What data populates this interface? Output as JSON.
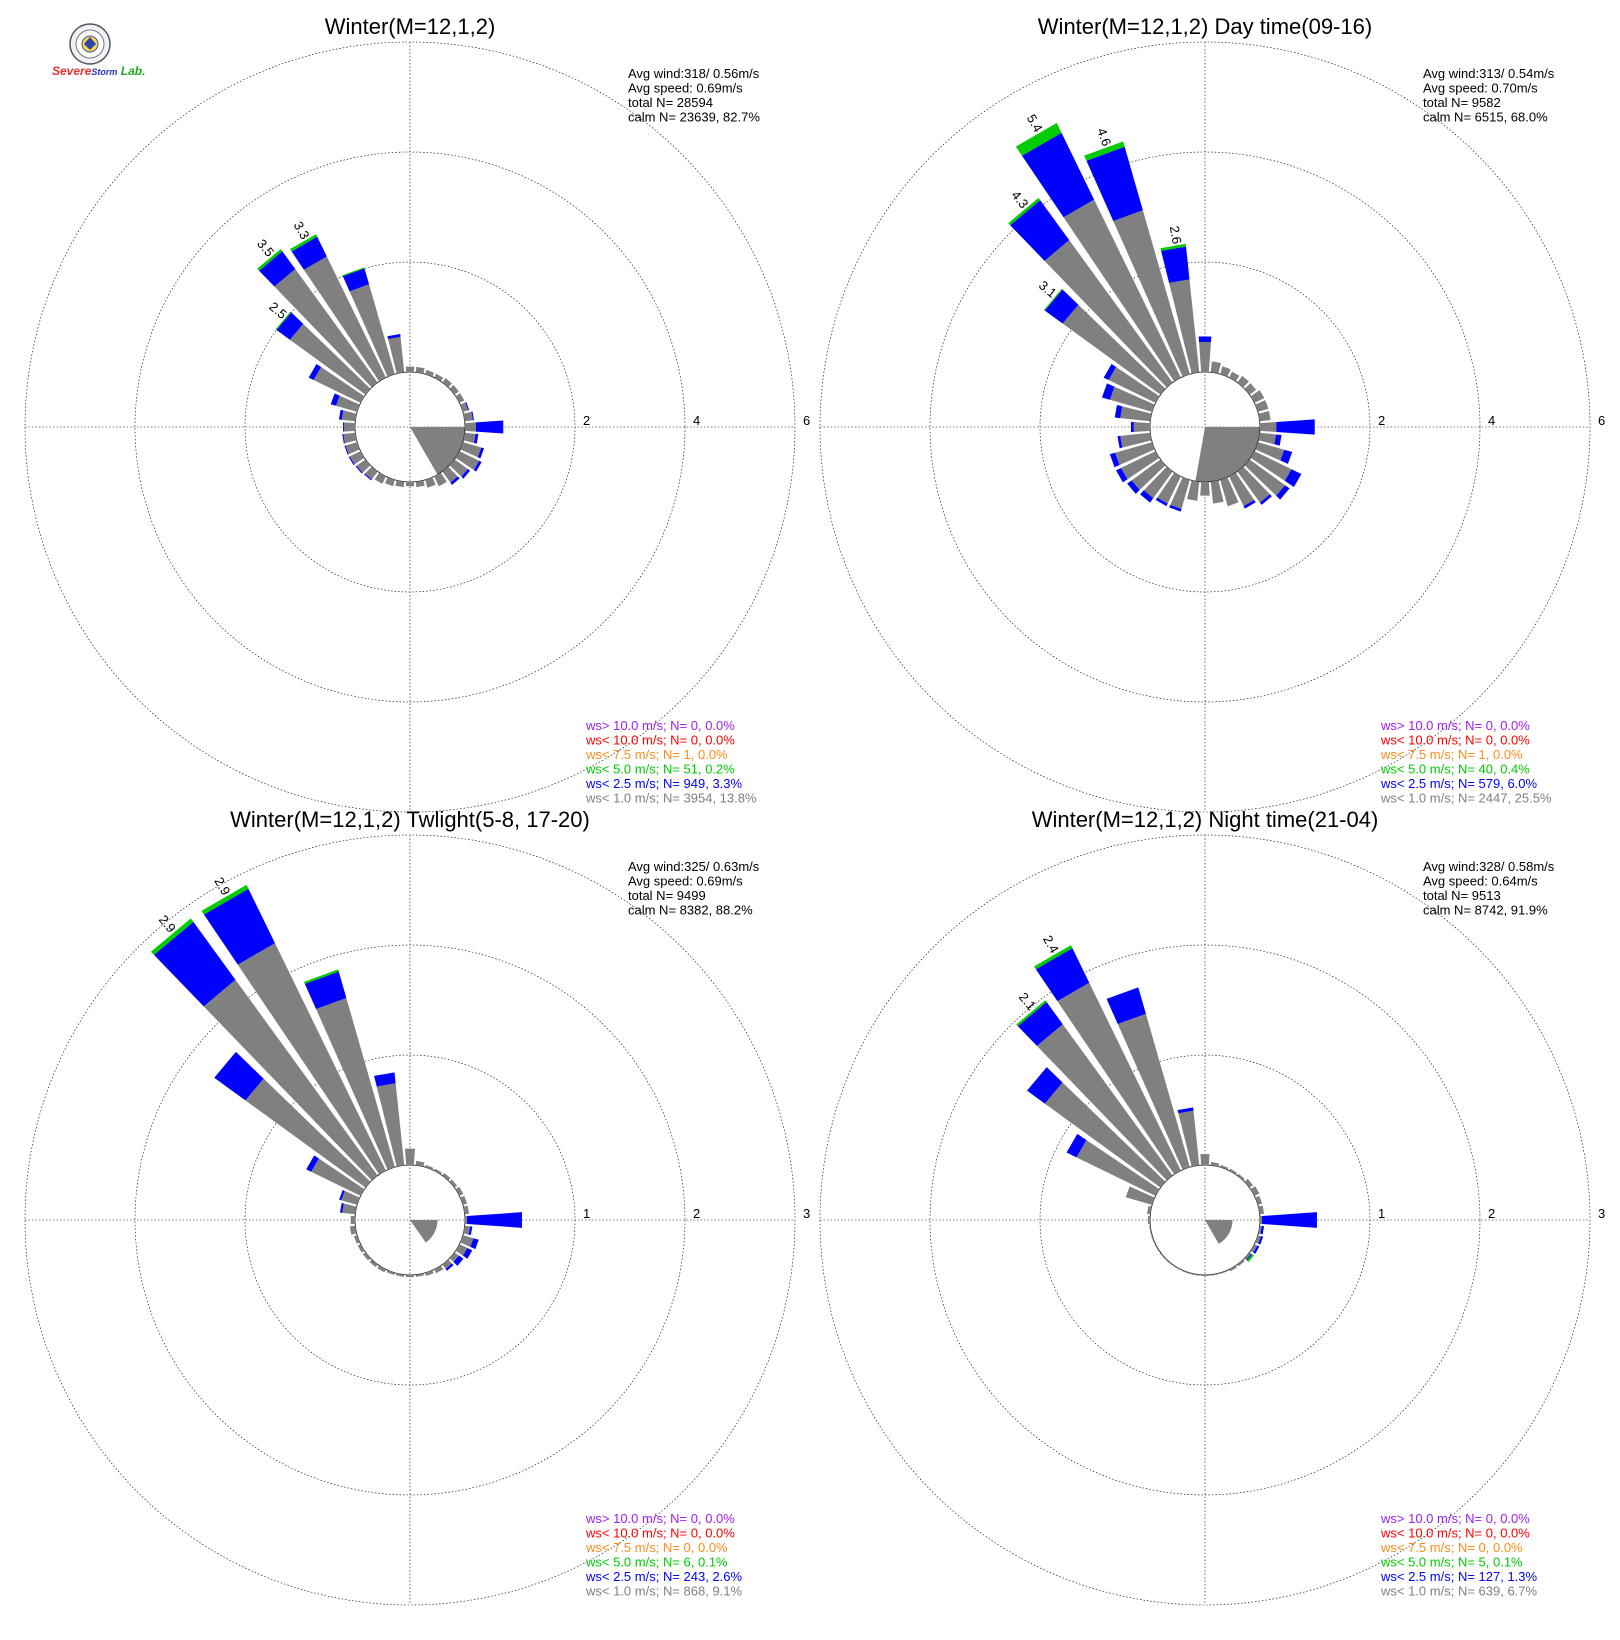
{
  "logo": {
    "text_severe": "Severe",
    "text_storm": "Storm",
    "text_lab": "Lab.",
    "colors": {
      "severe": "#e53030",
      "storm": "#2233cc",
      "lab": "#22aa22"
    }
  },
  "colors": {
    "ws_gt10": "#a020f0",
    "ws_lt10": "#ff0000",
    "ws_lt75": "#ff8c1a",
    "ws_lt50": "#00cc00",
    "ws_lt25": "#0000ff",
    "ws_lt10m": "#808080"
  },
  "chart_data": [
    {
      "type": "wind-rose",
      "title": "Winter(M=12,1,2)",
      "stats": [
        "Avg wind:318/ 0.56m/s",
        "Avg speed: 0.69m/s",
        "total N=      28594",
        "calm N=  23639,  82.7%"
      ],
      "radial_ticks": [
        "2",
        "4",
        "6"
      ],
      "rmax": 6,
      "legend": [
        {
          "text": "ws> 10.0 m/s; N=     0,  0.0%",
          "class": "ws_gt10"
        },
        {
          "text": "ws< 10.0 m/s; N=     0,  0.0%",
          "class": "ws_lt10"
        },
        {
          "text": "ws<  7.5 m/s; N=     1,  0.0%",
          "class": "ws_lt75"
        },
        {
          "text": "ws<  5.0 m/s; N=    51,  0.2%",
          "class": "ws_lt50"
        },
        {
          "text": "ws<  2.5 m/s; N=   949,  3.3%",
          "class": "ws_lt25"
        },
        {
          "text": "ws<  1.0 m/s; N=  3954, 13.8%",
          "class": "ws_lt10m"
        }
      ],
      "bars": [
        {
          "dir": 90,
          "g": 0.2,
          "b": 0.5,
          "gr": 0
        },
        {
          "dir": 100,
          "g": 0.2,
          "b": 0.05,
          "gr": 0
        },
        {
          "dir": 110,
          "g": 0.35,
          "b": 0.05,
          "gr": 0
        },
        {
          "dir": 120,
          "g": 0.4,
          "b": 0.05,
          "gr": 0
        },
        {
          "dir": 130,
          "g": 0.3,
          "b": 0.05,
          "gr": 0
        },
        {
          "dir": 140,
          "g": 0.25,
          "b": 0.05,
          "gr": 0
        },
        {
          "dir": 150,
          "g": 0.2,
          "b": 0,
          "gr": 0
        },
        {
          "dir": 160,
          "g": 0.15,
          "b": 0,
          "gr": 0
        },
        {
          "dir": 170,
          "g": 0.1,
          "b": 0,
          "gr": 0
        },
        {
          "dir": 180,
          "g": 0.08,
          "b": 0,
          "gr": 0
        },
        {
          "dir": 190,
          "g": 0.1,
          "b": 0,
          "gr": 0
        },
        {
          "dir": 200,
          "g": 0.12,
          "b": 0,
          "gr": 0
        },
        {
          "dir": 210,
          "g": 0.15,
          "b": 0,
          "gr": 0
        },
        {
          "dir": 220,
          "g": 0.18,
          "b": 0.02,
          "gr": 0
        },
        {
          "dir": 230,
          "g": 0.2,
          "b": 0.02,
          "gr": 0
        },
        {
          "dir": 240,
          "g": 0.22,
          "b": 0.02,
          "gr": 0
        },
        {
          "dir": 250,
          "g": 0.22,
          "b": 0.02,
          "gr": 0
        },
        {
          "dir": 260,
          "g": 0.22,
          "b": 0.02,
          "gr": 0
        },
        {
          "dir": 270,
          "g": 0.2,
          "b": 0.02,
          "gr": 0
        },
        {
          "dir": 280,
          "g": 0.25,
          "b": 0.05,
          "gr": 0
        },
        {
          "dir": 290,
          "g": 0.4,
          "b": 0.1,
          "gr": 0
        },
        {
          "dir": 300,
          "g": 0.95,
          "b": 0.1,
          "gr": 0
        },
        {
          "dir": 310,
          "g": 1.7,
          "b": 0.3,
          "gr": 0.02,
          "label": "2.5"
        },
        {
          "dir": 320,
          "g": 2.55,
          "b": 0.4,
          "gr": 0.05,
          "label": "3.5"
        },
        {
          "dir": 330,
          "g": 2.45,
          "b": 0.4,
          "gr": 0.05,
          "label": "3.3"
        },
        {
          "dir": 340,
          "g": 1.7,
          "b": 0.3,
          "gr": 0.02
        },
        {
          "dir": 350,
          "g": 0.65,
          "b": 0.05,
          "gr": 0
        },
        {
          "dir": 0,
          "g": 0.1,
          "b": 0,
          "gr": 0
        },
        {
          "dir": 10,
          "g": 0.1,
          "b": 0,
          "gr": 0
        },
        {
          "dir": 20,
          "g": 0.08,
          "b": 0,
          "gr": 0
        },
        {
          "dir": 30,
          "g": 0.08,
          "b": 0,
          "gr": 0
        },
        {
          "dir": 40,
          "g": 0.1,
          "b": 0,
          "gr": 0
        },
        {
          "dir": 50,
          "g": 0.1,
          "b": 0,
          "gr": 0
        },
        {
          "dir": 60,
          "g": 0.1,
          "b": 0,
          "gr": 0
        },
        {
          "dir": 70,
          "g": 0.1,
          "b": 0.02,
          "gr": 0
        },
        {
          "dir": 80,
          "g": 0.15,
          "b": 0.02,
          "gr": 0
        }
      ],
      "calm_wedge": {
        "from": 90,
        "to": 150,
        "r": 1.0
      }
    },
    {
      "type": "wind-rose",
      "title": "Winter(M=12,1,2) Day time(09-16)",
      "stats": [
        "Avg wind:313/ 0.54m/s",
        "Avg speed: 0.70m/s",
        "total N=       9582",
        "calm N=   6515,  68.0%"
      ],
      "radial_ticks": [
        "2",
        "4",
        "6"
      ],
      "rmax": 6,
      "legend": [
        {
          "text": "ws> 10.0 m/s; N=     0,  0.0%",
          "class": "ws_gt10"
        },
        {
          "text": "ws< 10.0 m/s; N=     0,  0.0%",
          "class": "ws_lt10"
        },
        {
          "text": "ws<  7.5 m/s; N=     1,  0.0%",
          "class": "ws_lt75"
        },
        {
          "text": "ws<  5.0 m/s; N=    40,  0.4%",
          "class": "ws_lt50"
        },
        {
          "text": "ws<  2.5 m/s; N=   579,  6.0%",
          "class": "ws_lt25"
        },
        {
          "text": "ws<  1.0 m/s; N=  2447, 25.5%",
          "class": "ws_lt10m"
        }
      ],
      "bars": [
        {
          "dir": 90,
          "g": 0.3,
          "b": 0.7,
          "gr": 0
        },
        {
          "dir": 100,
          "g": 0.3,
          "b": 0.1,
          "gr": 0
        },
        {
          "dir": 110,
          "g": 0.5,
          "b": 0.15,
          "gr": 0
        },
        {
          "dir": 120,
          "g": 0.75,
          "b": 0.2,
          "gr": 0
        },
        {
          "dir": 130,
          "g": 0.8,
          "b": 0.1,
          "gr": 0
        },
        {
          "dir": 140,
          "g": 0.7,
          "b": 0.05,
          "gr": 0
        },
        {
          "dir": 150,
          "g": 0.6,
          "b": 0.05,
          "gr": 0
        },
        {
          "dir": 160,
          "g": 0.5,
          "b": 0,
          "gr": 0
        },
        {
          "dir": 170,
          "g": 0.4,
          "b": 0,
          "gr": 0
        },
        {
          "dir": 180,
          "g": 0.25,
          "b": 0,
          "gr": 0
        },
        {
          "dir": 190,
          "g": 0.35,
          "b": 0,
          "gr": 0
        },
        {
          "dir": 200,
          "g": 0.55,
          "b": 0.05,
          "gr": 0
        },
        {
          "dir": 210,
          "g": 0.55,
          "b": 0.05,
          "gr": 0
        },
        {
          "dir": 220,
          "g": 0.6,
          "b": 0.1,
          "gr": 0
        },
        {
          "dir": 230,
          "g": 0.65,
          "b": 0.1,
          "gr": 0
        },
        {
          "dir": 240,
          "g": 0.7,
          "b": 0.1,
          "gr": 0
        },
        {
          "dir": 250,
          "g": 0.7,
          "b": 0.1,
          "gr": 0
        },
        {
          "dir": 260,
          "g": 0.55,
          "b": 0.05,
          "gr": 0
        },
        {
          "dir": 270,
          "g": 0.3,
          "b": 0.05,
          "gr": 0
        },
        {
          "dir": 280,
          "g": 0.55,
          "b": 0.1,
          "gr": 0
        },
        {
          "dir": 290,
          "g": 0.8,
          "b": 0.15,
          "gr": 0
        },
        {
          "dir": 300,
          "g": 0.95,
          "b": 0.1,
          "gr": 0
        },
        {
          "dir": 310,
          "g": 2.2,
          "b": 0.4,
          "gr": 0.02,
          "label": "3.1"
        },
        {
          "dir": 320,
          "g": 3.2,
          "b": 0.9,
          "gr": 0.05,
          "label": "4.3"
        },
        {
          "dir": 330,
          "g": 3.6,
          "b": 1.35,
          "gr": 0.2,
          "label": "5.4"
        },
        {
          "dir": 340,
          "g": 3.1,
          "b": 1.2,
          "gr": 0.1,
          "label": "4.6"
        },
        {
          "dir": 350,
          "g": 1.7,
          "b": 0.6,
          "gr": 0.05,
          "label": "2.6"
        },
        {
          "dir": 0,
          "g": 0.55,
          "b": 0.1,
          "gr": 0
        },
        {
          "dir": 10,
          "g": 0.2,
          "b": 0,
          "gr": 0
        },
        {
          "dir": 20,
          "g": 0.15,
          "b": 0,
          "gr": 0
        },
        {
          "dir": 30,
          "g": 0.12,
          "b": 0,
          "gr": 0
        },
        {
          "dir": 40,
          "g": 0.15,
          "b": 0,
          "gr": 0
        },
        {
          "dir": 50,
          "g": 0.15,
          "b": 0,
          "gr": 0
        },
        {
          "dir": 60,
          "g": 0.2,
          "b": 0,
          "gr": 0
        },
        {
          "dir": 70,
          "g": 0.2,
          "b": 0,
          "gr": 0
        },
        {
          "dir": 80,
          "g": 0.2,
          "b": 0,
          "gr": 0
        }
      ],
      "calm_wedge": {
        "from": 90,
        "to": 190,
        "r": 1.0
      }
    },
    {
      "type": "wind-rose",
      "title": "Winter(M=12,1,2) Twlight(5-8, 17-20)",
      "stats": [
        "Avg wind:325/ 0.63m/s",
        "Avg speed: 0.69m/s",
        "total N=       9499",
        "calm N=   8382,  88.2%"
      ],
      "radial_ticks": [
        "1",
        "2",
        "3"
      ],
      "rmax": 3,
      "legend": [
        {
          "text": "ws> 10.0 m/s; N=     0,  0.0%",
          "class": "ws_gt10"
        },
        {
          "text": "ws< 10.0 m/s; N=     0,  0.0%",
          "class": "ws_lt10"
        },
        {
          "text": "ws<  7.5 m/s; N=     0,  0.0%",
          "class": "ws_lt75"
        },
        {
          "text": "ws<  5.0 m/s; N=     6,  0.1%",
          "class": "ws_lt50"
        },
        {
          "text": "ws<  2.5 m/s; N=   243,  2.6%",
          "class": "ws_lt25"
        },
        {
          "text": "ws<  1.0 m/s; N=   868,  9.1%",
          "class": "ws_lt10m"
        }
      ],
      "bars": [
        {
          "dir": 90,
          "g": 0.02,
          "b": 0.5,
          "gr": 0
        },
        {
          "dir": 100,
          "g": 0.05,
          "b": 0.02,
          "gr": 0
        },
        {
          "dir": 110,
          "g": 0.1,
          "b": 0.05,
          "gr": 0
        },
        {
          "dir": 120,
          "g": 0.08,
          "b": 0.05,
          "gr": 0
        },
        {
          "dir": 130,
          "g": 0.05,
          "b": 0.05,
          "gr": 0
        },
        {
          "dir": 140,
          "g": 0.05,
          "b": 0.02,
          "gr": 0
        },
        {
          "dir": 150,
          "g": 0.04,
          "b": 0,
          "gr": 0
        },
        {
          "dir": 160,
          "g": 0.03,
          "b": 0,
          "gr": 0
        },
        {
          "dir": 170,
          "g": 0.02,
          "b": 0,
          "gr": 0
        },
        {
          "dir": 180,
          "g": 0.02,
          "b": 0,
          "gr": 0
        },
        {
          "dir": 190,
          "g": 0.02,
          "b": 0,
          "gr": 0
        },
        {
          "dir": 200,
          "g": 0.02,
          "b": 0,
          "gr": 0
        },
        {
          "dir": 210,
          "g": 0.03,
          "b": 0,
          "gr": 0
        },
        {
          "dir": 220,
          "g": 0.03,
          "b": 0,
          "gr": 0
        },
        {
          "dir": 230,
          "g": 0.03,
          "b": 0,
          "gr": 0
        },
        {
          "dir": 240,
          "g": 0.03,
          "b": 0,
          "gr": 0
        },
        {
          "dir": 250,
          "g": 0.03,
          "b": 0,
          "gr": 0
        },
        {
          "dir": 260,
          "g": 0.05,
          "b": 0,
          "gr": 0
        },
        {
          "dir": 270,
          "g": 0.04,
          "b": 0,
          "gr": 0
        },
        {
          "dir": 280,
          "g": 0.12,
          "b": 0.02,
          "gr": 0
        },
        {
          "dir": 290,
          "g": 0.15,
          "b": 0.02,
          "gr": 0
        },
        {
          "dir": 300,
          "g": 0.5,
          "b": 0.05,
          "gr": 0
        },
        {
          "dir": 310,
          "g": 1.35,
          "b": 0.35,
          "gr": 0
        },
        {
          "dir": 320,
          "g": 2.2,
          "b": 0.65,
          "gr": 0.04,
          "label": "2.9"
        },
        {
          "dir": 330,
          "g": 2.3,
          "b": 0.55,
          "gr": 0.04,
          "label": "2.9"
        },
        {
          "dir": 340,
          "g": 1.6,
          "b": 0.25,
          "gr": 0.02
        },
        {
          "dir": 350,
          "g": 0.75,
          "b": 0.1,
          "gr": 0
        },
        {
          "dir": 0,
          "g": 0.15,
          "b": 0,
          "gr": 0
        },
        {
          "dir": 10,
          "g": 0.04,
          "b": 0,
          "gr": 0
        },
        {
          "dir": 20,
          "g": 0.02,
          "b": 0,
          "gr": 0
        },
        {
          "dir": 30,
          "g": 0.02,
          "b": 0,
          "gr": 0
        },
        {
          "dir": 40,
          "g": 0.03,
          "b": 0,
          "gr": 0
        },
        {
          "dir": 50,
          "g": 0.03,
          "b": 0,
          "gr": 0
        },
        {
          "dir": 60,
          "g": 0.04,
          "b": 0,
          "gr": 0
        },
        {
          "dir": 70,
          "g": 0.04,
          "b": 0,
          "gr": 0
        },
        {
          "dir": 80,
          "g": 0.04,
          "b": 0,
          "gr": 0
        }
      ],
      "calm_wedge": {
        "from": 90,
        "to": 145,
        "r": 0.5
      }
    },
    {
      "type": "wind-rose",
      "title": "Winter(M=12,1,2) Night time(21-04)",
      "stats": [
        "Avg wind:328/ 0.58m/s",
        "Avg speed: 0.64m/s",
        "total N=       9513",
        "calm N=   8742,  91.9%"
      ],
      "radial_ticks": [
        "1",
        "2",
        "3"
      ],
      "rmax": 3,
      "legend": [
        {
          "text": "ws> 10.0 m/s; N=     0,  0.0%",
          "class": "ws_gt10"
        },
        {
          "text": "ws< 10.0 m/s; N=     0,  0.0%",
          "class": "ws_lt10"
        },
        {
          "text": "ws<  7.5 m/s; N=     0,  0.0%",
          "class": "ws_lt75"
        },
        {
          "text": "ws<  5.0 m/s; N=     5,  0.1%",
          "class": "ws_lt50"
        },
        {
          "text": "ws<  2.5 m/s; N=   127,  1.3%",
          "class": "ws_lt25"
        },
        {
          "text": "ws<  1.0 m/s; N=   639,  6.7%",
          "class": "ws_lt10m"
        }
      ],
      "bars": [
        {
          "dir": 90,
          "g": 0.02,
          "b": 0.5,
          "gr": 0
        },
        {
          "dir": 100,
          "g": 0.02,
          "b": 0.02,
          "gr": 0
        },
        {
          "dir": 110,
          "g": 0.03,
          "b": 0.02,
          "gr": 0
        },
        {
          "dir": 120,
          "g": 0.03,
          "b": 0.02,
          "gr": 0
        },
        {
          "dir": 130,
          "g": 0.02,
          "b": 0.01,
          "gr": 0.02
        },
        {
          "dir": 140,
          "g": 0.02,
          "b": 0,
          "gr": 0
        },
        {
          "dir": 150,
          "g": 0.02,
          "b": 0,
          "gr": 0
        },
        {
          "dir": 160,
          "g": 0.01,
          "b": 0,
          "gr": 0
        },
        {
          "dir": 170,
          "g": 0.01,
          "b": 0,
          "gr": 0
        },
        {
          "dir": 180,
          "g": 0.01,
          "b": 0,
          "gr": 0
        },
        {
          "dir": 190,
          "g": 0.01,
          "b": 0,
          "gr": 0
        },
        {
          "dir": 200,
          "g": 0.01,
          "b": 0,
          "gr": 0
        },
        {
          "dir": 210,
          "g": 0.01,
          "b": 0,
          "gr": 0
        },
        {
          "dir": 220,
          "g": 0.01,
          "b": 0,
          "gr": 0
        },
        {
          "dir": 230,
          "g": 0.01,
          "b": 0,
          "gr": 0
        },
        {
          "dir": 240,
          "g": 0.01,
          "b": 0,
          "gr": 0
        },
        {
          "dir": 250,
          "g": 0.01,
          "b": 0,
          "gr": 0
        },
        {
          "dir": 260,
          "g": 0.01,
          "b": 0,
          "gr": 0
        },
        {
          "dir": 270,
          "g": 0.02,
          "b": 0,
          "gr": 0
        },
        {
          "dir": 280,
          "g": 0.03,
          "b": 0,
          "gr": 0
        },
        {
          "dir": 290,
          "g": 0.25,
          "b": 0,
          "gr": 0
        },
        {
          "dir": 300,
          "g": 0.8,
          "b": 0.1,
          "gr": 0
        },
        {
          "dir": 310,
          "g": 1.3,
          "b": 0.2,
          "gr": 0
        },
        {
          "dir": 320,
          "g": 1.7,
          "b": 0.25,
          "gr": 0.02,
          "label": "2.1"
        },
        {
          "dir": 330,
          "g": 1.9,
          "b": 0.35,
          "gr": 0.03,
          "label": "2.4"
        },
        {
          "dir": 340,
          "g": 1.45,
          "b": 0.25,
          "gr": 0
        },
        {
          "dir": 350,
          "g": 0.5,
          "b": 0.03,
          "gr": 0
        },
        {
          "dir": 0,
          "g": 0.1,
          "b": 0,
          "gr": 0
        },
        {
          "dir": 10,
          "g": 0.03,
          "b": 0,
          "gr": 0
        },
        {
          "dir": 20,
          "g": 0.02,
          "b": 0,
          "gr": 0
        },
        {
          "dir": 30,
          "g": 0.02,
          "b": 0,
          "gr": 0
        },
        {
          "dir": 40,
          "g": 0.02,
          "b": 0,
          "gr": 0
        },
        {
          "dir": 50,
          "g": 0.04,
          "b": 0,
          "gr": 0
        },
        {
          "dir": 60,
          "g": 0.05,
          "b": 0,
          "gr": 0
        },
        {
          "dir": 70,
          "g": 0.04,
          "b": 0,
          "gr": 0
        },
        {
          "dir": 80,
          "g": 0.04,
          "b": 0,
          "gr": 0
        }
      ],
      "calm_wedge": {
        "from": 90,
        "to": 150,
        "r": 0.5
      }
    }
  ]
}
